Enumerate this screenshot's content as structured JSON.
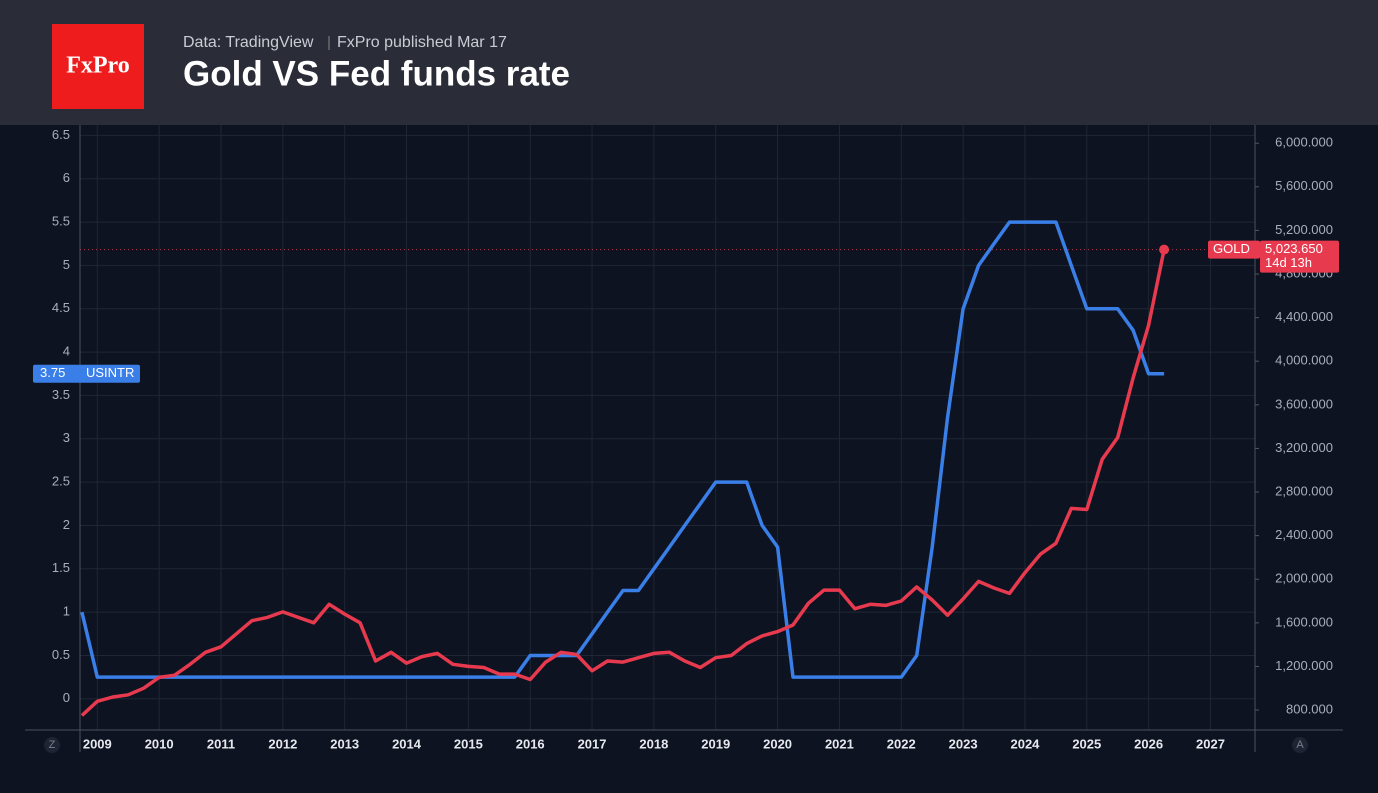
{
  "header": {
    "logo": "FxPro",
    "source": "Data: TradingView",
    "published": "FxPro published Mar 17"
  },
  "chart_data": {
    "type": "line",
    "title": "Gold VS Fed funds rate",
    "x": [
      2008.75,
      2009,
      2009.25,
      2009.5,
      2009.75,
      2010,
      2010.25,
      2010.5,
      2010.75,
      2011,
      2011.25,
      2011.5,
      2011.75,
      2012,
      2012.25,
      2012.5,
      2012.75,
      2013,
      2013.25,
      2013.5,
      2013.75,
      2014,
      2014.25,
      2014.5,
      2014.75,
      2015,
      2015.25,
      2015.5,
      2015.75,
      2016,
      2016.25,
      2016.5,
      2016.75,
      2017,
      2017.25,
      2017.5,
      2017.75,
      2018,
      2018.25,
      2018.5,
      2018.75,
      2019,
      2019.25,
      2019.5,
      2019.75,
      2020,
      2020.25,
      2020.5,
      2020.75,
      2021,
      2021.25,
      2021.5,
      2021.75,
      2022,
      2022.25,
      2022.5,
      2022.75,
      2023,
      2023.25,
      2023.5,
      2023.75,
      2024,
      2024.25,
      2024.5,
      2024.75,
      2025,
      2025.25,
      2025.5,
      2025.75,
      2026,
      2026.25
    ],
    "series": [
      {
        "name": "USINTR",
        "color": "#3a7ee8",
        "axis": "y",
        "values": [
          1.0,
          0.25,
          0.25,
          0.25,
          0.25,
          0.25,
          0.25,
          0.25,
          0.25,
          0.25,
          0.25,
          0.25,
          0.25,
          0.25,
          0.25,
          0.25,
          0.25,
          0.25,
          0.25,
          0.25,
          0.25,
          0.25,
          0.25,
          0.25,
          0.25,
          0.25,
          0.25,
          0.25,
          0.25,
          0.5,
          0.5,
          0.5,
          0.5,
          0.75,
          1.0,
          1.25,
          1.25,
          1.5,
          1.75,
          2.0,
          2.25,
          2.5,
          2.5,
          2.5,
          2.0,
          1.75,
          0.25,
          0.25,
          0.25,
          0.25,
          0.25,
          0.25,
          0.25,
          0.25,
          0.5,
          1.75,
          3.25,
          4.5,
          5.0,
          5.25,
          5.5,
          5.5,
          5.5,
          5.5,
          5.0,
          4.5,
          4.5,
          4.5,
          4.25,
          3.75,
          3.75
        ]
      },
      {
        "name": "GOLD",
        "color": "#e83a4f",
        "axis": "y2",
        "last_value_label": "5,023.650",
        "countdown": "14d 13h",
        "values": [
          750,
          880,
          920,
          940,
          1000,
          1100,
          1120,
          1220,
          1330,
          1380,
          1500,
          1620,
          1650,
          1700,
          1650,
          1600,
          1770,
          1680,
          1600,
          1250,
          1330,
          1230,
          1290,
          1320,
          1220,
          1200,
          1190,
          1130,
          1130,
          1080,
          1240,
          1330,
          1310,
          1160,
          1250,
          1240,
          1280,
          1320,
          1330,
          1250,
          1190,
          1280,
          1300,
          1410,
          1480,
          1520,
          1580,
          1780,
          1900,
          1900,
          1730,
          1770,
          1760,
          1800,
          1930,
          1810,
          1670,
          1820,
          1980,
          1920,
          1870,
          2060,
          2230,
          2330,
          2650,
          2640,
          3100,
          3300,
          3850,
          4330,
          5023.65
        ]
      }
    ],
    "xlim": [
      2008.72,
      2027.72
    ],
    "xticks": [
      2009,
      2010,
      2011,
      2012,
      2013,
      2014,
      2015,
      2016,
      2017,
      2018,
      2019,
      2020,
      2021,
      2022,
      2023,
      2024,
      2025,
      2026,
      2027
    ],
    "ylim": [
      -0.36,
      6.62
    ],
    "yticks": [
      0,
      0.5,
      1,
      1.5,
      2,
      2.5,
      3,
      3.5,
      4,
      4.5,
      5,
      5.5,
      6,
      6.5
    ],
    "y2lim": [
      617,
      6167
    ],
    "y2ticks": [
      {
        "value": 800,
        "label": "800.000"
      },
      {
        "value": 1200,
        "label": "1,200.000"
      },
      {
        "value": 1600,
        "label": "1,600.000"
      },
      {
        "value": 2000,
        "label": "2,000.000"
      },
      {
        "value": 2400,
        "label": "2,400.000"
      },
      {
        "value": 2800,
        "label": "2,800.000"
      },
      {
        "value": 3200,
        "label": "3,200.000"
      },
      {
        "value": 3600,
        "label": "3,600.000"
      },
      {
        "value": 4000,
        "label": "4,000.000"
      },
      {
        "value": 4400,
        "label": "4,400.000"
      },
      {
        "value": 4800,
        "label": "4,800.000"
      },
      {
        "value": 5200,
        "label": "5,200.000"
      },
      {
        "value": 5600,
        "label": "5,600.000"
      },
      {
        "value": 6000,
        "label": "6,000.000"
      }
    ],
    "grid": true,
    "left_button": "Z",
    "right_button": "A"
  }
}
